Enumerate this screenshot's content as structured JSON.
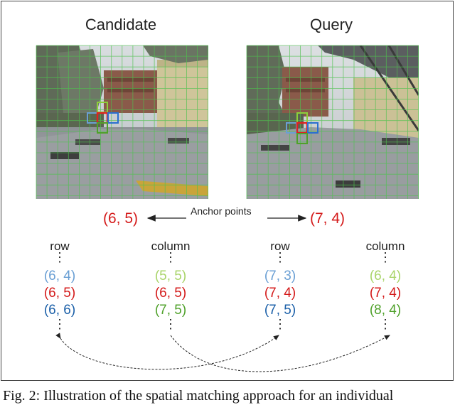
{
  "candidate": {
    "title": "Candidate",
    "anchor": "(6, 5)",
    "row": {
      "header": "row",
      "entries": [
        {
          "text": "(6, 4)",
          "color": "#6a9fd4"
        },
        {
          "text": "(6, 5)",
          "color": "#d41a1a"
        },
        {
          "text": "(6, 6)",
          "color": "#1a5fa8"
        }
      ]
    },
    "column": {
      "header": "column",
      "entries": [
        {
          "text": "(5, 5)",
          "color": "#a9d46a"
        },
        {
          "text": "(6, 5)",
          "color": "#d41a1a"
        },
        {
          "text": "(7, 5)",
          "color": "#4fa12a"
        }
      ]
    }
  },
  "query": {
    "title": "Query",
    "anchor": "(7, 4)",
    "row": {
      "header": "row",
      "entries": [
        {
          "text": "(7, 3)",
          "color": "#6a9fd4"
        },
        {
          "text": "(7, 4)",
          "color": "#d41a1a"
        },
        {
          "text": "(7, 5)",
          "color": "#1a5fa8"
        }
      ]
    },
    "column": {
      "header": "column",
      "entries": [
        {
          "text": "(6, 4)",
          "color": "#a9d46a"
        },
        {
          "text": "(7, 4)",
          "color": "#d41a1a"
        },
        {
          "text": "(8, 4)",
          "color": "#4fa12a"
        }
      ]
    }
  },
  "anchor_label": "Anchor points",
  "dots": "⋮",
  "caption": "Fig. 2: Illustration of the spatial matching approach for an individual",
  "colors": {
    "anchor": "#d41a1a",
    "grid": "#4ec24e",
    "box_red": "#e02020",
    "box_blue": "#2a6fd0",
    "box_green": "#8ccf3a"
  }
}
